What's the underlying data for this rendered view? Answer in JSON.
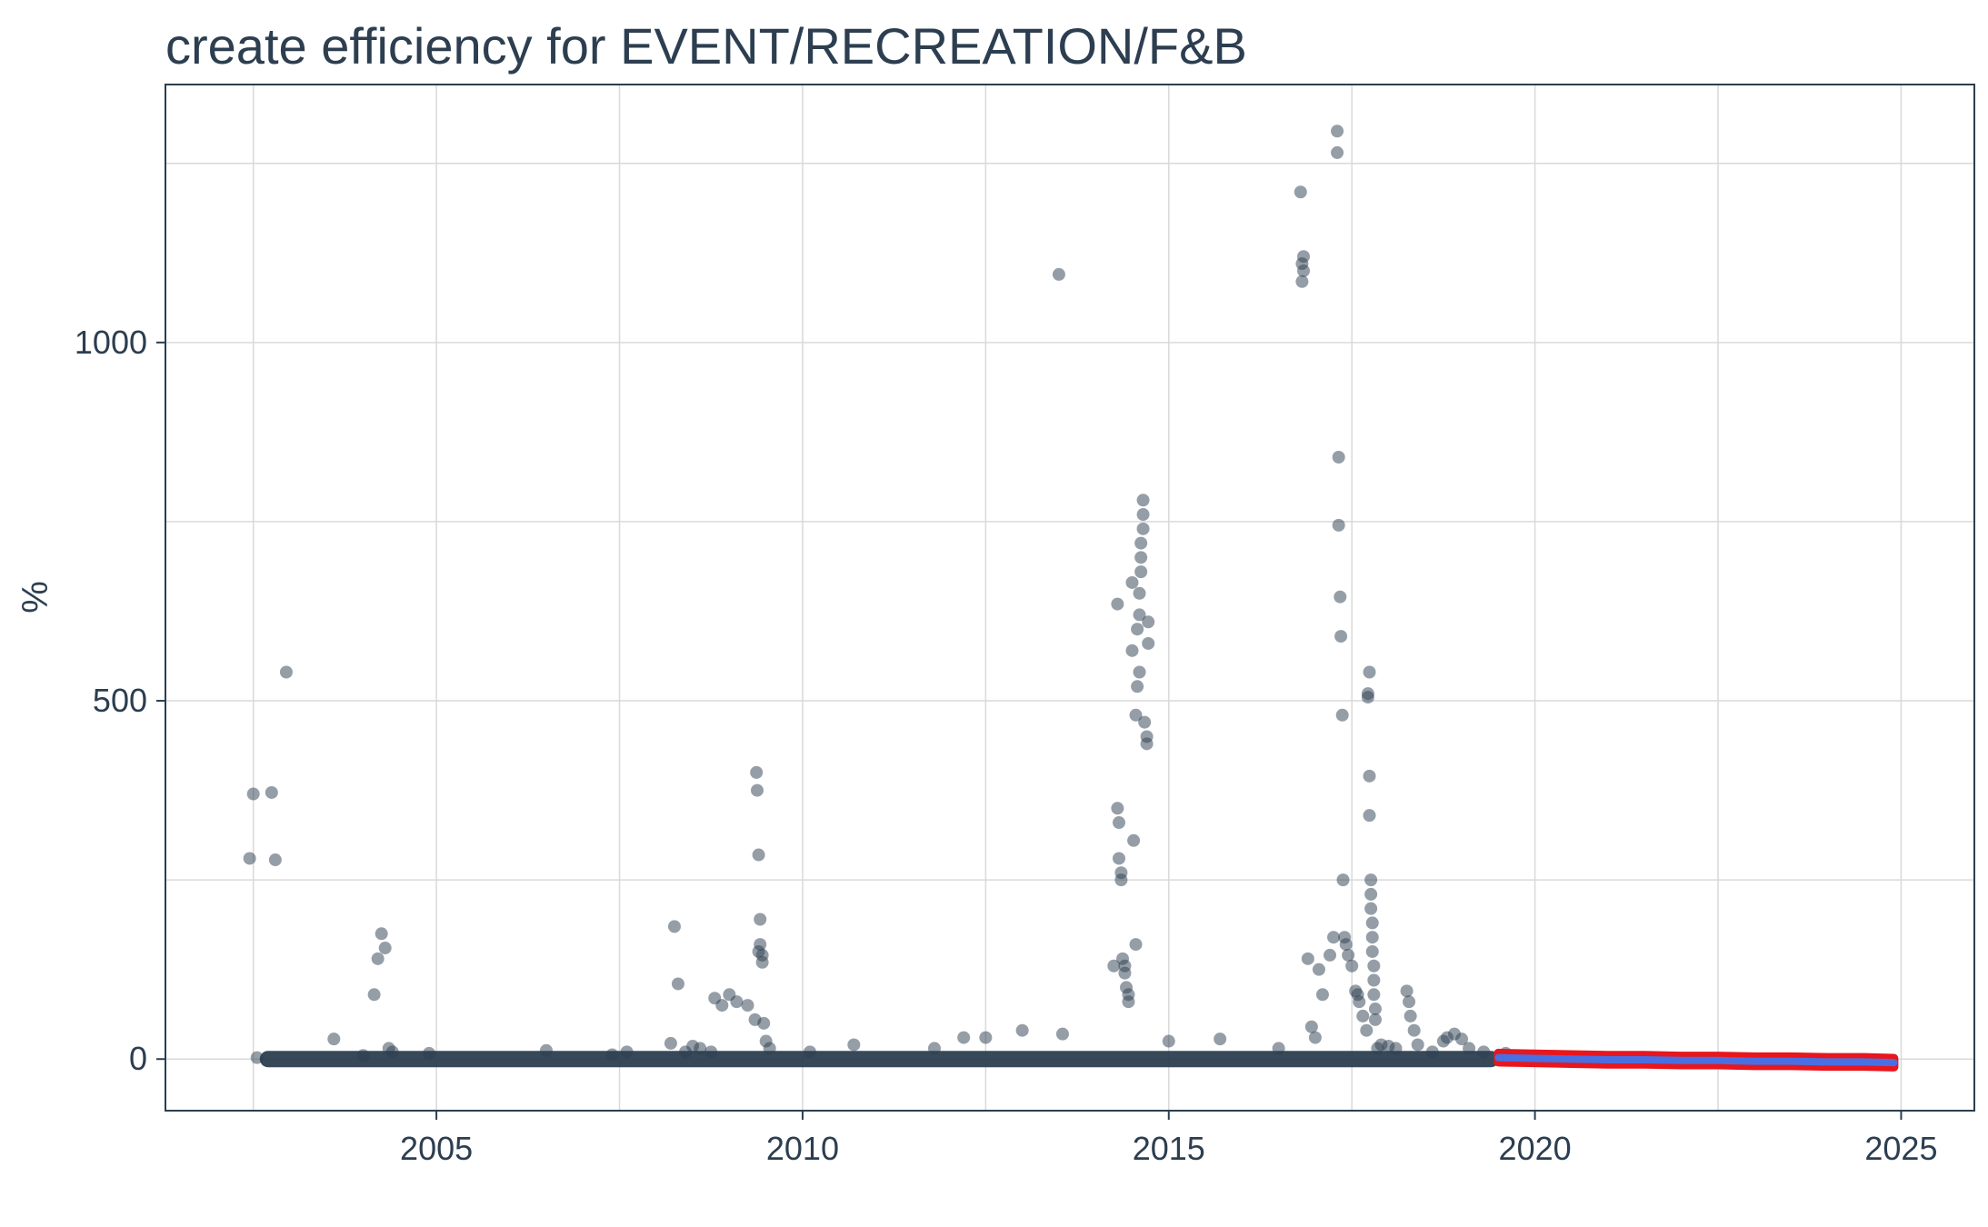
{
  "chart_data": {
    "type": "scatter",
    "title": "create efficiency for EVENT/RECREATION/F&B",
    "xlabel": "",
    "ylabel": "%",
    "xlim": [
      2001.3,
      2026.0
    ],
    "ylim": [
      -72,
      1360
    ],
    "x_ticks": [
      2005,
      2010,
      2015,
      2020,
      2025
    ],
    "y_ticks": [
      0,
      500,
      1000
    ],
    "x_minor_gridlines": [
      2002.5,
      2007.5,
      2012.5,
      2017.5,
      2022.5
    ],
    "y_minor_gridlines": [
      250,
      750,
      1250
    ],
    "grid": true,
    "legend": "none",
    "colors": {
      "points": "#2c3e50",
      "forecast_band": "#e8161d",
      "forecast_line": "#4a6fe3",
      "text": "#2c3e50",
      "grid": "#d9d9d9"
    },
    "baseline": {
      "name": "",
      "x_start": 2002.7,
      "x_end": 2019.4,
      "y": 0
    },
    "forecast": {
      "x": [
        2019.5,
        2020.0,
        2020.5,
        2021.0,
        2021.5,
        2022.0,
        2022.5,
        2023.0,
        2023.5,
        2024.0,
        2024.5,
        2024.9
      ],
      "y": [
        2,
        1,
        0,
        -1,
        -1,
        -2,
        -2,
        -3,
        -3,
        -4,
        -4,
        -5
      ],
      "lower": [
        -4,
        -5,
        -6,
        -7,
        -7,
        -8,
        -8,
        -9,
        -9,
        -10,
        -10,
        -11
      ],
      "upper": [
        8,
        7,
        6,
        5,
        5,
        4,
        4,
        3,
        3,
        2,
        2,
        1
      ]
    },
    "series": [
      {
        "name": "",
        "x": [
          2002.45,
          2002.5,
          2002.55,
          2002.75,
          2002.8,
          2002.95,
          2003.6,
          2004.0,
          2004.15,
          2004.2,
          2004.25,
          2004.3,
          2004.35,
          2004.4,
          2004.9,
          2006.5,
          2007.4,
          2007.6,
          2008.2,
          2008.25,
          2008.3,
          2008.4,
          2008.5,
          2008.6,
          2008.75,
          2008.8,
          2008.9,
          2009.0,
          2009.1,
          2009.25,
          2009.35,
          2009.37,
          2009.38,
          2009.4,
          2009.4,
          2009.42,
          2009.42,
          2009.45,
          2009.45,
          2009.47,
          2009.5,
          2009.55,
          2010.1,
          2010.7,
          2011.8,
          2012.2,
          2012.5,
          2013.0,
          2013.5,
          2013.55,
          2014.25,
          2014.3,
          2014.3,
          2014.32,
          2014.32,
          2014.35,
          2014.35,
          2014.37,
          2014.4,
          2014.4,
          2014.42,
          2014.45,
          2014.45,
          2014.5,
          2014.5,
          2014.52,
          2014.55,
          2014.55,
          2014.57,
          2014.57,
          2014.6,
          2014.6,
          2014.6,
          2014.62,
          2014.62,
          2014.62,
          2014.65,
          2014.65,
          2014.65,
          2014.67,
          2014.7,
          2014.7,
          2014.72,
          2014.72,
          2015.0,
          2015.7,
          2016.5,
          2016.8,
          2016.82,
          2016.82,
          2016.84,
          2016.84,
          2016.9,
          2016.95,
          2017.0,
          2017.05,
          2017.1,
          2017.2,
          2017.25,
          2017.3,
          2017.3,
          2017.32,
          2017.32,
          2017.34,
          2017.35,
          2017.37,
          2017.38,
          2017.4,
          2017.42,
          2017.45,
          2017.5,
          2017.55,
          2017.58,
          2017.6,
          2017.65,
          2017.7,
          2017.72,
          2017.72,
          2017.74,
          2017.74,
          2017.74,
          2017.76,
          2017.76,
          2017.76,
          2017.78,
          2017.78,
          2017.78,
          2017.8,
          2017.8,
          2017.8,
          2017.82,
          2017.82,
          2017.85,
          2017.9,
          2018.0,
          2018.1,
          2018.25,
          2018.28,
          2018.3,
          2018.35,
          2018.4,
          2018.6,
          2018.75,
          2018.8,
          2018.9,
          2019.0,
          2019.1,
          2019.3,
          2019.6
        ],
        "y": [
          280,
          370,
          2,
          372,
          278,
          540,
          28,
          5,
          90,
          140,
          175,
          155,
          15,
          10,
          8,
          12,
          6,
          10,
          22,
          185,
          105,
          10,
          18,
          15,
          10,
          85,
          75,
          90,
          80,
          75,
          55,
          400,
          375,
          285,
          150,
          160,
          195,
          145,
          135,
          50,
          25,
          15,
          10,
          20,
          15,
          30,
          30,
          40,
          1095,
          35,
          130,
          635,
          350,
          330,
          280,
          260,
          250,
          140,
          130,
          120,
          100,
          90,
          80,
          570,
          665,
          305,
          160,
          480,
          520,
          600,
          540,
          620,
          650,
          680,
          700,
          720,
          740,
          760,
          780,
          470,
          450,
          440,
          580,
          610,
          25,
          28,
          15,
          1210,
          1085,
          1110,
          1120,
          1100,
          140,
          45,
          30,
          125,
          90,
          145,
          170,
          1295,
          1265,
          840,
          745,
          645,
          590,
          480,
          250,
          170,
          160,
          145,
          130,
          95,
          90,
          80,
          60,
          40,
          510,
          505,
          395,
          340,
          540,
          250,
          230,
          210,
          190,
          170,
          150,
          130,
          110,
          90,
          70,
          55,
          15,
          20,
          18,
          15,
          95,
          80,
          60,
          40,
          20,
          10,
          25,
          30,
          35,
          28,
          15,
          10,
          8
        ]
      }
    ]
  }
}
